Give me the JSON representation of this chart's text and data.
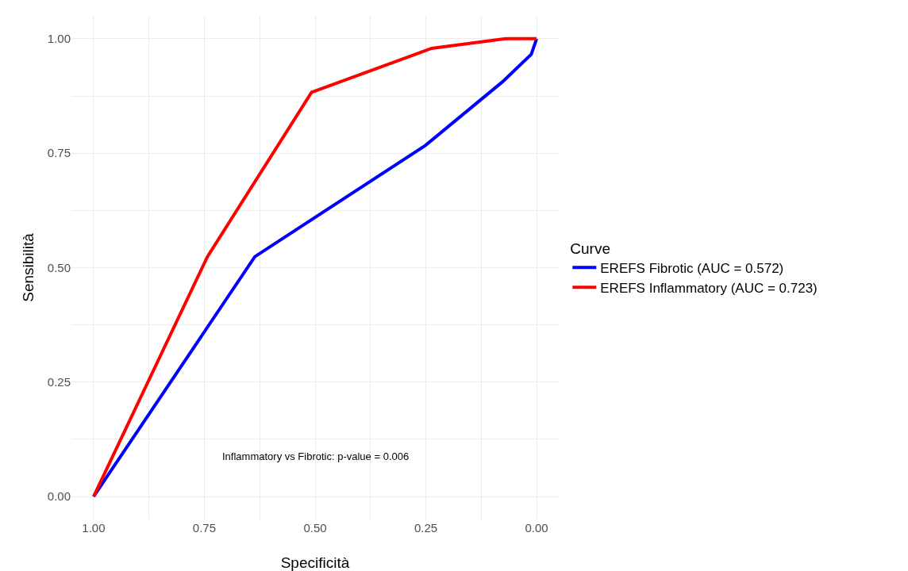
{
  "chart_data": {
    "type": "line",
    "xlabel": "Specificità",
    "ylabel": "Sensibilità",
    "legend_title": "Curve",
    "legend": "right",
    "grid": true,
    "xlim": [
      1.05,
      -0.05
    ],
    "ylim": [
      -0.05,
      1.05
    ],
    "xticks": [
      {
        "value": 1,
        "label": "1.00"
      },
      {
        "value": 0.875,
        "label": null
      },
      {
        "value": 0.75,
        "label": "0.75"
      },
      {
        "value": 0.625,
        "label": null
      },
      {
        "value": 0.5,
        "label": "0.50"
      },
      {
        "value": 0.375,
        "label": null
      },
      {
        "value": 0.25,
        "label": "0.25"
      },
      {
        "value": 0.125,
        "label": null
      },
      {
        "value": 0,
        "label": "0.00"
      }
    ],
    "yticks": [
      {
        "value": 0,
        "label": "0.00"
      },
      {
        "value": 0.125,
        "label": null
      },
      {
        "value": 0.25,
        "label": "0.25"
      },
      {
        "value": 0.375,
        "label": null
      },
      {
        "value": 0.5,
        "label": "0.50"
      },
      {
        "value": 0.625,
        "label": null
      },
      {
        "value": 0.75,
        "label": "0.75"
      },
      {
        "value": 0.875,
        "label": null
      },
      {
        "value": 1,
        "label": "1.00"
      }
    ],
    "annotations": [
      "Inflammatory vs Fibrotic: p-value = 0.006"
    ],
    "series": [
      {
        "name": "EREFS Fibrotic (AUC = 0.572)",
        "color": "#0000ff",
        "x": [
          1,
          0.636,
          0.251,
          0.077,
          0.012,
          0
        ],
        "values": [
          0,
          0.524,
          0.767,
          0.906,
          0.966,
          1
        ]
      },
      {
        "name": "EREFS Inflammatory (AUC = 0.723)",
        "color": "#ff0000",
        "x": [
          1,
          0.743,
          0.508,
          0.237,
          0.07,
          0
        ],
        "values": [
          0,
          0.524,
          0.883,
          0.979,
          1,
          1
        ]
      }
    ]
  }
}
